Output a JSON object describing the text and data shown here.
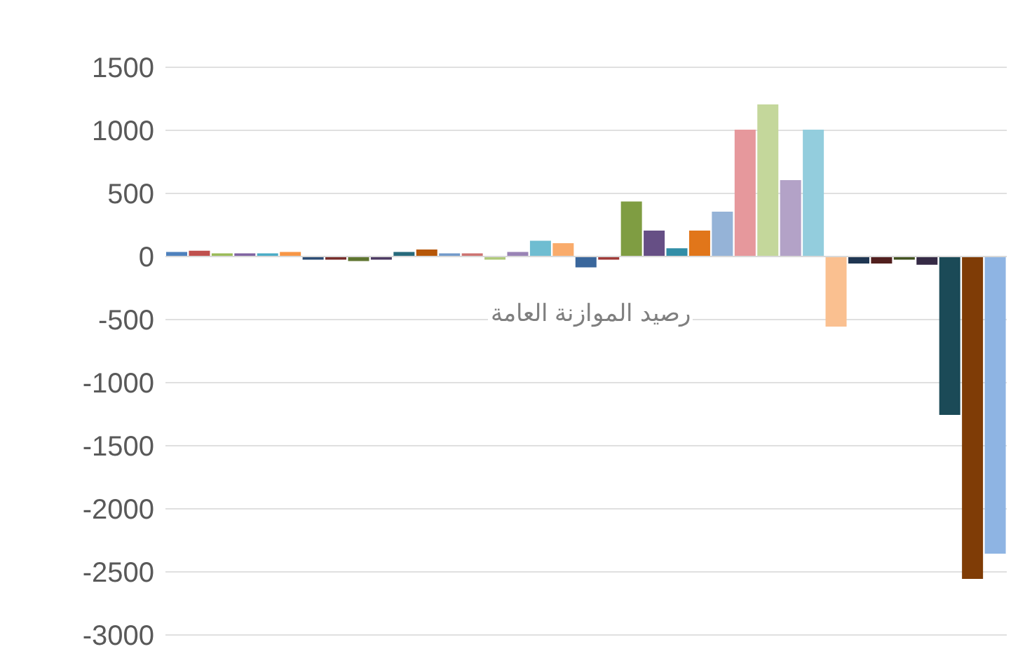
{
  "chart_data": {
    "type": "bar",
    "title": "رصيد الموازنة العامة",
    "categories": [
      null,
      null,
      null,
      null,
      null,
      null,
      null,
      null,
      null,
      null,
      null,
      null,
      null,
      null,
      null,
      null,
      null,
      null,
      null,
      null,
      null,
      null,
      null,
      null,
      null,
      null,
      null,
      null,
      null,
      null,
      null,
      null,
      null,
      null,
      null,
      null,
      null
    ],
    "values": [
      30,
      40,
      20,
      20,
      20,
      30,
      -20,
      -20,
      -30,
      -20,
      30,
      50,
      20,
      20,
      -20,
      30,
      120,
      100,
      -80,
      -20,
      430,
      200,
      60,
      200,
      350,
      1000,
      1200,
      600,
      1000,
      -550,
      -50,
      -50,
      -20,
      -60,
      -1250,
      -2550,
      -2350
    ],
    "colors": [
      "#4f81bd",
      "#c0504d",
      "#9bbb59",
      "#8064a2",
      "#4bacc6",
      "#f79646",
      "#2c4d75",
      "#772c2a",
      "#5f7530",
      "#4d3b62",
      "#276a7c",
      "#b65708",
      "#729aca",
      "#cd7371",
      "#afc97a",
      "#9983b5",
      "#6fbdd1",
      "#f9ab6b",
      "#3a679c",
      "#9f3b38",
      "#7f9d42",
      "#664f85",
      "#328ea7",
      "#e1761a",
      "#95b3d7",
      "#e6989c",
      "#c4d79b",
      "#b3a2c7",
      "#93cddd",
      "#fac090",
      "#1f3652",
      "#511f1e",
      "#425220",
      "#352a45",
      "#1b4a57",
      "#7f3c06",
      "#8eb4e3"
    ],
    "ylim": [
      -3000,
      1500
    ],
    "yticks": [
      -3000,
      -2500,
      -2000,
      -1500,
      -1000,
      -500,
      0,
      500,
      1000,
      1500
    ],
    "grid": "y"
  }
}
